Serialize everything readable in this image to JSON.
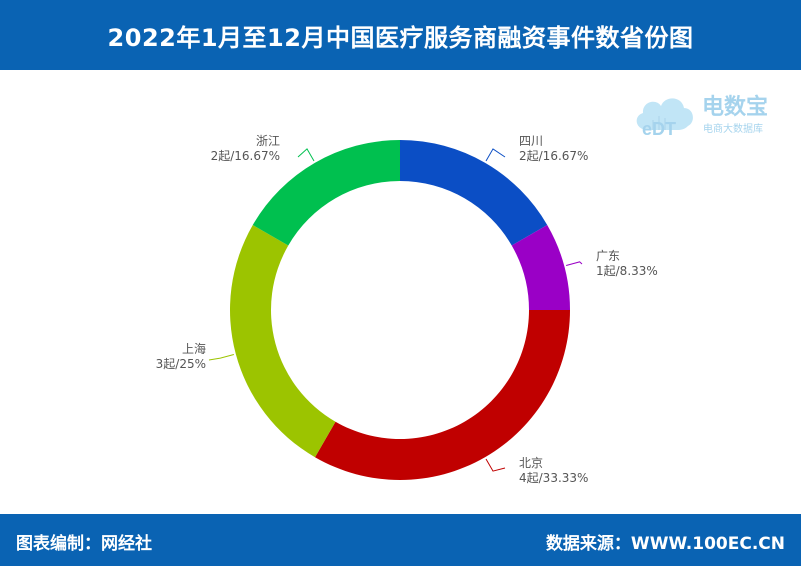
{
  "header": {
    "title": "2022年1月至12月中国医疗服务商融资事件数省份图"
  },
  "footer": {
    "left": "图表编制：网经社",
    "right": "数据来源：WWW.100EC.CN"
  },
  "watermark": {
    "brand": "电数宝",
    "tagline": "电商大数据库",
    "logo_text": "eDT"
  },
  "colors": {
    "header_bg": "#0a63b3",
    "四川": "#0b4ec5",
    "广东": "#9a00c6",
    "北京": "#c00000",
    "上海": "#9cc400",
    "浙江": "#00c04f"
  },
  "chart_data": {
    "type": "donut",
    "title": "2022年1月至12月中国医疗服务商融资事件数省份图",
    "slices": [
      {
        "label": "四川",
        "count": 2,
        "percent": 16.67,
        "value_text": "2起/16.67%",
        "color": "#0b4ec5",
        "label_side": "right"
      },
      {
        "label": "广东",
        "count": 1,
        "percent": 8.33,
        "value_text": "1起/8.33%",
        "color": "#9a00c6",
        "label_side": "right"
      },
      {
        "label": "北京",
        "count": 4,
        "percent": 33.33,
        "value_text": "4起/33.33%",
        "color": "#c00000",
        "label_side": "right"
      },
      {
        "label": "上海",
        "count": 3,
        "percent": 25,
        "value_text": "3起/25%",
        "color": "#9cc400",
        "label_side": "left"
      },
      {
        "label": "浙江",
        "count": 2,
        "percent": 16.67,
        "value_text": "2起/16.67%",
        "color": "#00c04f",
        "label_side": "left"
      }
    ]
  }
}
